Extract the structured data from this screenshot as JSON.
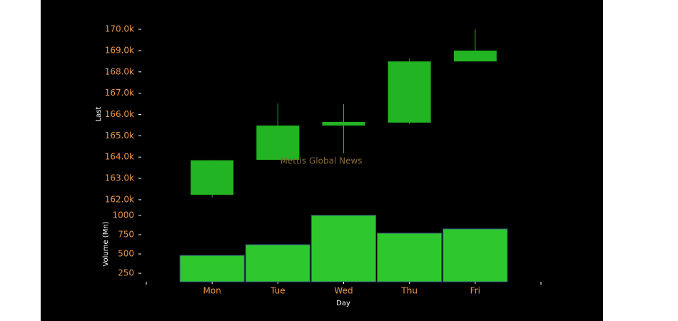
{
  "chart_data": [
    {
      "type": "candlestick",
      "y_label": "Last",
      "watermark": "Mettis Global News",
      "color": "#22b422",
      "categories": [
        "Mon",
        "Tue",
        "Wed",
        "Thu",
        "Fri"
      ],
      "open": [
        162230,
        163870,
        165480,
        165620,
        168490
      ],
      "high": [
        163850,
        166520,
        166490,
        168630,
        170000
      ],
      "low": [
        162100,
        163870,
        164180,
        165550,
        168490
      ],
      "close": [
        163850,
        165480,
        165650,
        168490,
        169000
      ],
      "ylim": [
        161830,
        170370
      ],
      "yticks": [
        {
          "value": 162000,
          "label": "162.0k"
        },
        {
          "value": 163000,
          "label": "163.0k"
        },
        {
          "value": 164000,
          "label": "164.0k"
        },
        {
          "value": 165000,
          "label": "165.0k"
        },
        {
          "value": 166000,
          "label": "166.0k"
        },
        {
          "value": 167000,
          "label": "167.0k"
        },
        {
          "value": 168000,
          "label": "168.0k"
        },
        {
          "value": 169000,
          "label": "169.0k"
        },
        {
          "value": 170000,
          "label": "170.0k"
        }
      ]
    },
    {
      "type": "bar",
      "y_label": "Volume (Mn)",
      "x_label": "Day",
      "color": "#2ec82e",
      "categories": [
        "Mon",
        "Tue",
        "Wed",
        "Thu",
        "Fri"
      ],
      "values": [
        481,
        620,
        1000,
        769,
        824
      ],
      "ylim": [
        140,
        1110
      ],
      "yticks": [
        250,
        500,
        750,
        1000
      ]
    }
  ]
}
